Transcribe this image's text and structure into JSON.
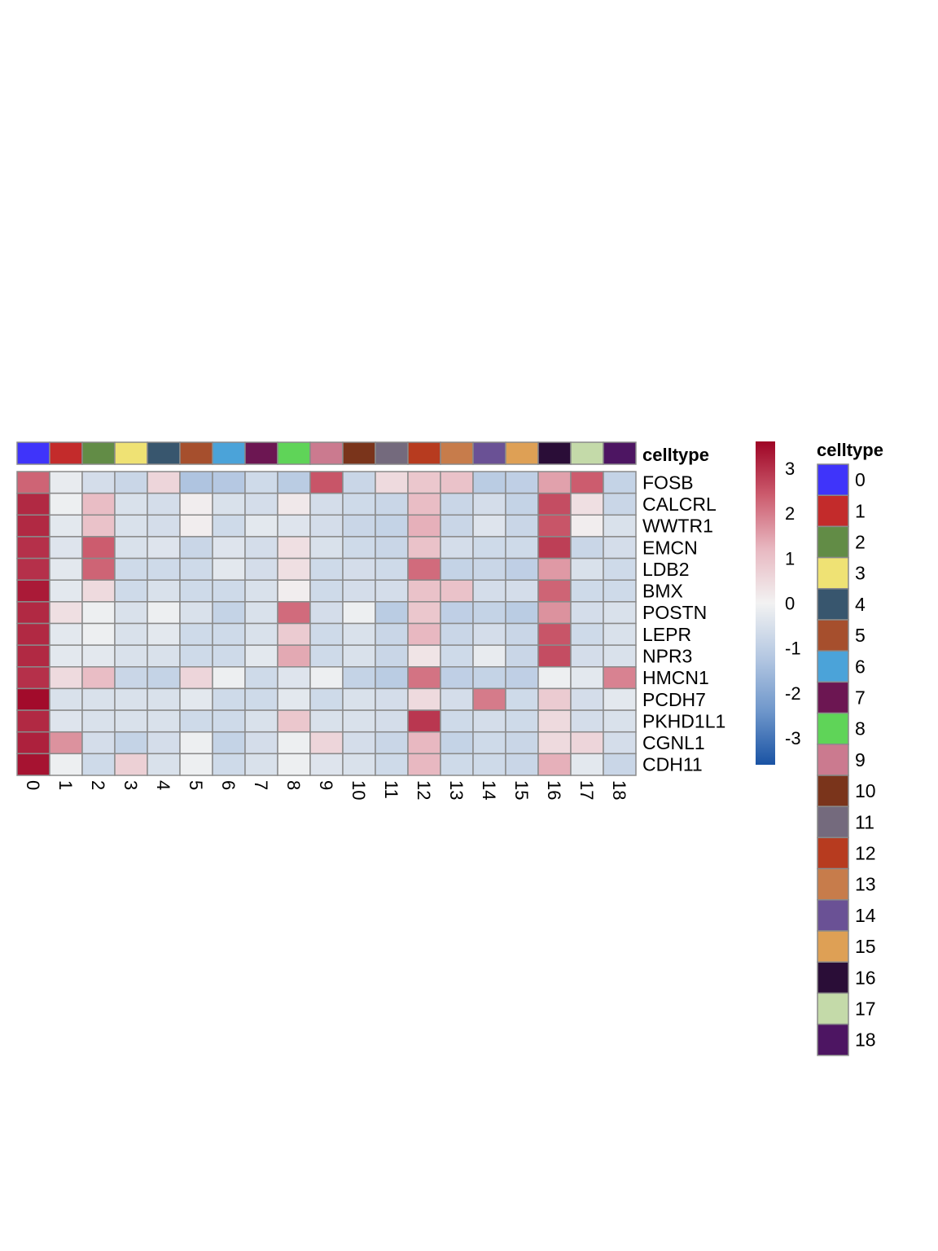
{
  "chart_data": {
    "type": "heatmap",
    "title": "",
    "xlabel": "",
    "ylabel": "",
    "columns": [
      "0",
      "1",
      "2",
      "3",
      "4",
      "5",
      "6",
      "7",
      "8",
      "9",
      "10",
      "11",
      "12",
      "13",
      "14",
      "15",
      "16",
      "17",
      "18"
    ],
    "rows": [
      "FOSB",
      "CALCRL",
      "WWTR1",
      "EMCN",
      "LDB2",
      "BMX",
      "POSTN",
      "LEPR",
      "NPR3",
      "HMCN1",
      "PCDH7",
      "PKHD1L1",
      "CGNL1",
      "CDH11"
    ],
    "values": [
      [
        2.3,
        -0.2,
        -0.6,
        -0.8,
        0.6,
        -1.3,
        -1.2,
        -0.7,
        -1.1,
        2.5,
        -0.8,
        0.5,
        0.9,
        1.0,
        -1.1,
        -1.0,
        1.5,
        2.4,
        -0.9
      ],
      [
        3.1,
        -0.1,
        1.1,
        -0.5,
        -0.6,
        0.1,
        -0.5,
        -0.6,
        0.2,
        -0.6,
        -0.7,
        -0.8,
        1.1,
        -0.8,
        -0.6,
        -0.9,
        2.6,
        0.4,
        -0.8
      ],
      [
        3.1,
        -0.3,
        1.0,
        -0.5,
        -0.6,
        0.1,
        -0.7,
        -0.3,
        -0.4,
        -0.6,
        -0.8,
        -0.9,
        1.3,
        -0.8,
        -0.4,
        -0.8,
        2.5,
        0.1,
        -0.5
      ],
      [
        3.0,
        -0.4,
        2.4,
        -0.5,
        -0.4,
        -0.8,
        -0.4,
        -0.6,
        0.4,
        -0.5,
        -0.7,
        -0.8,
        1.0,
        -0.6,
        -0.7,
        -0.7,
        2.8,
        -0.8,
        -0.6
      ],
      [
        3.0,
        -0.3,
        2.3,
        -0.7,
        -0.7,
        -0.7,
        -0.3,
        -0.6,
        0.4,
        -0.7,
        -0.6,
        -0.7,
        2.2,
        -0.9,
        -0.8,
        -1.0,
        1.6,
        -0.5,
        -0.7
      ],
      [
        3.3,
        -0.3,
        0.5,
        -0.7,
        -0.5,
        -0.7,
        -0.7,
        -0.5,
        0.1,
        -0.7,
        -0.6,
        -0.6,
        1.0,
        1.0,
        -0.6,
        -0.6,
        2.3,
        -0.7,
        -0.7
      ],
      [
        3.1,
        0.4,
        -0.1,
        -0.5,
        -0.1,
        -0.5,
        -0.9,
        -0.5,
        2.2,
        -0.6,
        -0.1,
        -1.1,
        0.9,
        -1.0,
        -0.9,
        -1.1,
        1.7,
        -0.6,
        -0.5
      ],
      [
        3.1,
        -0.3,
        -0.1,
        -0.5,
        -0.3,
        -0.7,
        -0.7,
        -0.5,
        0.8,
        -0.7,
        -0.5,
        -0.8,
        1.2,
        -0.8,
        -0.6,
        -0.8,
        2.5,
        -0.7,
        -0.5
      ],
      [
        3.1,
        -0.3,
        -0.3,
        -0.5,
        -0.5,
        -0.7,
        -0.7,
        -0.3,
        1.4,
        -0.7,
        -0.5,
        -0.8,
        0.3,
        -0.7,
        -0.2,
        -0.8,
        2.6,
        -0.6,
        -0.5
      ],
      [
        3.0,
        0.5,
        1.1,
        -0.8,
        -0.9,
        0.6,
        -0.1,
        -0.7,
        -0.4,
        -0.1,
        -0.9,
        -1.1,
        2.1,
        -1.0,
        -0.9,
        -1.0,
        -0.1,
        -0.3,
        1.9
      ],
      [
        3.5,
        -0.5,
        -0.5,
        -0.5,
        -0.5,
        -0.3,
        -0.7,
        -0.7,
        -0.3,
        -0.7,
        -0.5,
        -0.6,
        0.5,
        -0.6,
        2.0,
        -0.7,
        0.8,
        -0.6,
        -0.3
      ],
      [
        3.1,
        -0.4,
        -0.5,
        -0.5,
        -0.5,
        -0.7,
        -0.7,
        -0.5,
        0.9,
        -0.5,
        -0.5,
        -0.6,
        2.9,
        -0.7,
        -0.6,
        -0.7,
        0.5,
        -0.6,
        -0.5
      ],
      [
        3.2,
        1.7,
        -0.6,
        -0.9,
        -0.6,
        -0.1,
        -0.9,
        -0.6,
        -0.1,
        0.6,
        -0.6,
        -0.8,
        1.2,
        -0.9,
        -0.7,
        -0.8,
        0.5,
        0.6,
        -0.6
      ],
      [
        3.4,
        -0.1,
        -0.7,
        0.7,
        -0.5,
        -0.1,
        -0.7,
        -0.5,
        -0.1,
        -0.4,
        -0.5,
        -0.7,
        1.2,
        -0.7,
        -0.7,
        -0.8,
        1.3,
        -0.3,
        -0.8
      ]
    ],
    "annotation": {
      "name": "celltype",
      "colors": [
        "#3f34fa",
        "#c32b2b",
        "#628c46",
        "#efe274",
        "#38566e",
        "#a64f2d",
        "#4ba3d9",
        "#6c1652",
        "#5fd458",
        "#cb7a8f",
        "#7a341b",
        "#746a7d",
        "#b73b1f",
        "#c77c4b",
        "#6a5195",
        "#dea055",
        "#2a0d37",
        "#c4daa9",
        "#4d1562"
      ]
    },
    "colorbar": {
      "ticks": [
        3,
        2,
        1,
        0,
        -1,
        -2,
        -3
      ],
      "range": [
        -3.6,
        3.6
      ],
      "palette": [
        "#1a53a4",
        "#6f97cb",
        "#b5c8e2",
        "#f2f2f2",
        "#e8b8c1",
        "#cc5c6e",
        "#9e0425"
      ]
    },
    "legend": {
      "title": "celltype",
      "entries": [
        "0",
        "1",
        "2",
        "3",
        "4",
        "5",
        "6",
        "7",
        "8",
        "9",
        "10",
        "11",
        "12",
        "13",
        "14",
        "15",
        "16",
        "17",
        "18"
      ],
      "position": "right"
    },
    "grid": true
  }
}
